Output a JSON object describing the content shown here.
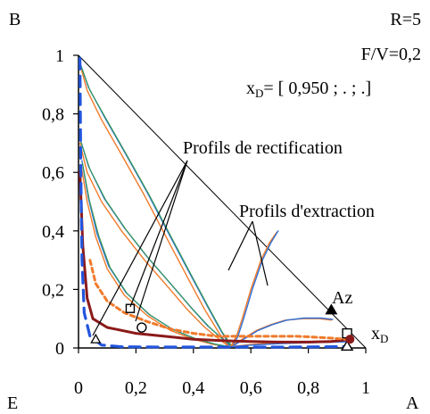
{
  "chart_data": {
    "type": "line",
    "title": "",
    "xlabel": "",
    "ylabel": "",
    "xlim": [
      0,
      1
    ],
    "ylim": [
      0,
      1
    ],
    "x_ticks": [
      "0",
      "0,2",
      "0,4",
      "0,6",
      "0,8",
      "1"
    ],
    "y_ticks": [
      "0",
      "0,2",
      "0,4",
      "0,6",
      "0,8",
      "1"
    ],
    "x_tick_values": [
      0,
      0.2,
      0.4,
      0.6,
      0.8,
      1
    ],
    "y_tick_values": [
      0,
      0.2,
      0.4,
      0.6,
      0.8,
      1
    ],
    "grid": false,
    "corner_labels": {
      "B": "B",
      "E": "E",
      "A": "A"
    },
    "parameters": {
      "R": "R=5",
      "FV": "F/V=0,2",
      "xD_prefix": "x",
      "xD_sub": "D",
      "xD_value": "= [ 0,950 ;  . ; .]"
    },
    "annotations": {
      "rectification": "Profils de rectification",
      "extraction": "Profils d'extraction",
      "az": "Az",
      "xd_prefix": "x",
      "xd_sub": "D"
    },
    "markers": {
      "az": {
        "x": 0.88,
        "y": 0.13
      },
      "xd_square": {
        "x": 0.935,
        "y": 0.05
      },
      "xd_triangle": {
        "x": 0.935,
        "y": 0.005
      },
      "xd_dot": {
        "x": 0.945,
        "y": 0.03
      },
      "sq_open": {
        "x": 0.18,
        "y": 0.135
      },
      "circle_open": {
        "x": 0.22,
        "y": 0.07
      },
      "tri_open": {
        "x": 0.06,
        "y": 0.03
      }
    },
    "colors": {
      "triangle": "#000000",
      "blue": "#2f6fd6",
      "green": "#3a9a5c",
      "orange": "#f07a2a",
      "darkred": "#8b1a1a",
      "dash_orange": "#f07a2a",
      "dash_blue": "#2255dd"
    },
    "series": [
      {
        "color": "orange",
        "width": 1.4,
        "dash": "",
        "points": [
          [
            0.005,
            0.97
          ],
          [
            0.03,
            0.88
          ],
          [
            0.08,
            0.78
          ],
          [
            0.15,
            0.66
          ],
          [
            0.23,
            0.52
          ],
          [
            0.31,
            0.37
          ],
          [
            0.38,
            0.24
          ],
          [
            0.44,
            0.13
          ],
          [
            0.49,
            0.05
          ],
          [
            0.52,
            0.01
          ]
        ]
      },
      {
        "color": "blue",
        "width": 1.4,
        "dash": "",
        "points": [
          [
            0.003,
            0.98
          ],
          [
            0.035,
            0.89
          ],
          [
            0.09,
            0.79
          ],
          [
            0.16,
            0.67
          ],
          [
            0.24,
            0.53
          ],
          [
            0.32,
            0.38
          ],
          [
            0.39,
            0.25
          ],
          [
            0.45,
            0.14
          ],
          [
            0.495,
            0.06
          ],
          [
            0.525,
            0.012
          ]
        ]
      },
      {
        "color": "green",
        "width": 1.2,
        "dash": "",
        "points": [
          [
            0.006,
            0.97
          ],
          [
            0.04,
            0.88
          ],
          [
            0.095,
            0.785
          ],
          [
            0.165,
            0.665
          ],
          [
            0.245,
            0.525
          ],
          [
            0.325,
            0.375
          ],
          [
            0.395,
            0.245
          ],
          [
            0.455,
            0.135
          ],
          [
            0.5,
            0.055
          ],
          [
            0.53,
            0.012
          ]
        ]
      },
      {
        "color": "orange",
        "width": 1.4,
        "dash": "",
        "points": [
          [
            0.005,
            0.7
          ],
          [
            0.03,
            0.6
          ],
          [
            0.08,
            0.5
          ],
          [
            0.15,
            0.4
          ],
          [
            0.23,
            0.3
          ],
          [
            0.31,
            0.21
          ],
          [
            0.38,
            0.13
          ],
          [
            0.44,
            0.07
          ],
          [
            0.49,
            0.03
          ],
          [
            0.52,
            0.008
          ]
        ]
      },
      {
        "color": "blue",
        "width": 1.4,
        "dash": "",
        "points": [
          [
            0.004,
            0.72
          ],
          [
            0.035,
            0.62
          ],
          [
            0.09,
            0.51
          ],
          [
            0.16,
            0.41
          ],
          [
            0.24,
            0.31
          ],
          [
            0.32,
            0.22
          ],
          [
            0.39,
            0.14
          ],
          [
            0.45,
            0.075
          ],
          [
            0.5,
            0.033
          ],
          [
            0.525,
            0.01
          ]
        ]
      },
      {
        "color": "green",
        "width": 1.2,
        "dash": "",
        "points": [
          [
            0.006,
            0.71
          ],
          [
            0.04,
            0.61
          ],
          [
            0.095,
            0.505
          ],
          [
            0.165,
            0.405
          ],
          [
            0.245,
            0.305
          ],
          [
            0.325,
            0.215
          ],
          [
            0.395,
            0.135
          ],
          [
            0.455,
            0.072
          ],
          [
            0.5,
            0.031
          ],
          [
            0.53,
            0.009
          ]
        ]
      },
      {
        "color": "orange",
        "width": 1.4,
        "dash": "",
        "points": [
          [
            0.01,
            0.62
          ],
          [
            0.03,
            0.5
          ],
          [
            0.06,
            0.38
          ],
          [
            0.1,
            0.27
          ],
          [
            0.16,
            0.18
          ],
          [
            0.24,
            0.11
          ],
          [
            0.32,
            0.06
          ],
          [
            0.4,
            0.03
          ],
          [
            0.47,
            0.012
          ],
          [
            0.52,
            0.003
          ]
        ]
      },
      {
        "color": "blue",
        "width": 1.4,
        "dash": "",
        "points": [
          [
            0.012,
            0.64
          ],
          [
            0.035,
            0.51
          ],
          [
            0.065,
            0.39
          ],
          [
            0.105,
            0.28
          ],
          [
            0.165,
            0.19
          ],
          [
            0.245,
            0.115
          ],
          [
            0.325,
            0.065
          ],
          [
            0.405,
            0.032
          ],
          [
            0.475,
            0.013
          ],
          [
            0.525,
            0.004
          ]
        ]
      },
      {
        "color": "green",
        "width": 1.2,
        "dash": "",
        "points": [
          [
            0.014,
            0.63
          ],
          [
            0.038,
            0.505
          ],
          [
            0.07,
            0.385
          ],
          [
            0.11,
            0.275
          ],
          [
            0.17,
            0.185
          ],
          [
            0.25,
            0.112
          ],
          [
            0.33,
            0.062
          ],
          [
            0.41,
            0.031
          ],
          [
            0.48,
            0.012
          ],
          [
            0.53,
            0.004
          ]
        ]
      },
      {
        "color": "orange",
        "width": 1.4,
        "dash": "",
        "points": [
          [
            0.53,
            0.005
          ],
          [
            0.55,
            0.04
          ],
          [
            0.57,
            0.1
          ],
          [
            0.6,
            0.2
          ],
          [
            0.635,
            0.3
          ],
          [
            0.665,
            0.36
          ],
          [
            0.69,
            0.395
          ]
        ]
      },
      {
        "color": "blue",
        "width": 1.4,
        "dash": "",
        "points": [
          [
            0.535,
            0.005
          ],
          [
            0.555,
            0.04
          ],
          [
            0.575,
            0.1
          ],
          [
            0.605,
            0.2
          ],
          [
            0.64,
            0.3
          ],
          [
            0.67,
            0.36
          ],
          [
            0.695,
            0.4
          ]
        ]
      },
      {
        "color": "orange",
        "width": 1.4,
        "dash": "",
        "points": [
          [
            0.53,
            0.005
          ],
          [
            0.57,
            0.03
          ],
          [
            0.62,
            0.06
          ],
          [
            0.67,
            0.08
          ],
          [
            0.72,
            0.095
          ],
          [
            0.78,
            0.1
          ],
          [
            0.84,
            0.1
          ],
          [
            0.88,
            0.095
          ]
        ]
      },
      {
        "color": "blue",
        "width": 1.4,
        "dash": "",
        "points": [
          [
            0.535,
            0.005
          ],
          [
            0.575,
            0.03
          ],
          [
            0.625,
            0.06
          ],
          [
            0.675,
            0.08
          ],
          [
            0.725,
            0.095
          ],
          [
            0.785,
            0.102
          ],
          [
            0.845,
            0.102
          ],
          [
            0.885,
            0.098
          ]
        ]
      },
      {
        "color": "orange",
        "width": 1.4,
        "dash": "",
        "points": [
          [
            0.52,
            0.003
          ],
          [
            0.6,
            0.012
          ],
          [
            0.7,
            0.018
          ],
          [
            0.8,
            0.022
          ],
          [
            0.88,
            0.024
          ],
          [
            0.93,
            0.026
          ]
        ]
      },
      {
        "color": "blue",
        "width": 1.4,
        "dash": "",
        "points": [
          [
            0.525,
            0.003
          ],
          [
            0.605,
            0.01
          ],
          [
            0.705,
            0.015
          ],
          [
            0.805,
            0.018
          ],
          [
            0.885,
            0.02
          ],
          [
            0.935,
            0.021
          ]
        ]
      },
      {
        "color": "darkred",
        "width": 3.0,
        "dash": "",
        "points": [
          [
            0.005,
            0.6
          ],
          [
            0.015,
            0.35
          ],
          [
            0.03,
            0.17
          ],
          [
            0.05,
            0.1
          ],
          [
            0.1,
            0.07
          ],
          [
            0.2,
            0.05
          ],
          [
            0.3,
            0.04
          ],
          [
            0.4,
            0.03
          ],
          [
            0.5,
            0.025
          ],
          [
            0.6,
            0.022
          ],
          [
            0.7,
            0.02
          ],
          [
            0.8,
            0.02
          ],
          [
            0.88,
            0.022
          ],
          [
            0.945,
            0.03
          ]
        ]
      },
      {
        "color": "dash_orange",
        "width": 3.0,
        "dash": "5 4",
        "points": [
          [
            0.04,
            0.3
          ],
          [
            0.06,
            0.22
          ],
          [
            0.1,
            0.16
          ],
          [
            0.16,
            0.12
          ],
          [
            0.24,
            0.09
          ],
          [
            0.32,
            0.065
          ],
          [
            0.4,
            0.05
          ],
          [
            0.48,
            0.04
          ],
          [
            0.56,
            0.04
          ],
          [
            0.66,
            0.04
          ],
          [
            0.76,
            0.04
          ],
          [
            0.86,
            0.035
          ],
          [
            0.935,
            0.03
          ]
        ]
      },
      {
        "color": "dash_blue",
        "width": 3.2,
        "dash": "12 8",
        "points": [
          [
            0.005,
            0.99
          ],
          [
            0.008,
            0.6
          ],
          [
            0.012,
            0.3
          ],
          [
            0.02,
            0.12
          ],
          [
            0.04,
            0.04
          ],
          [
            0.08,
            0.01
          ],
          [
            0.15,
            0.004
          ],
          [
            0.3,
            0.003
          ],
          [
            0.5,
            0.003
          ],
          [
            0.7,
            0.003
          ],
          [
            0.85,
            0.004
          ],
          [
            0.935,
            0.005
          ]
        ]
      }
    ]
  }
}
